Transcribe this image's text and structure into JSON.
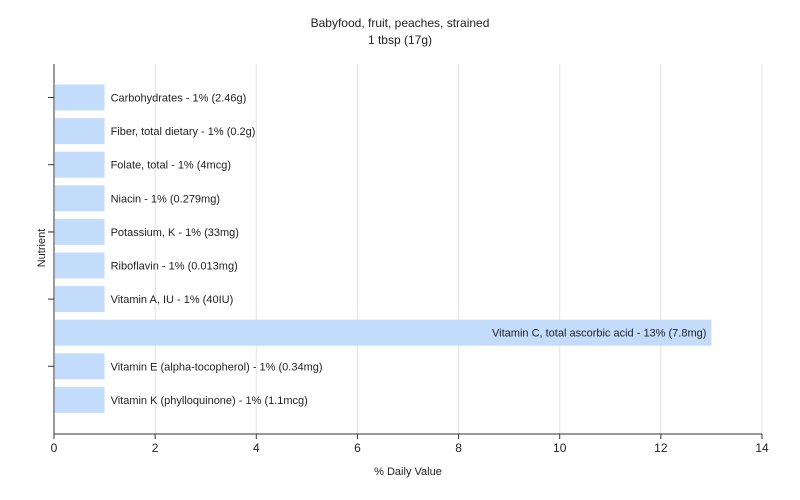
{
  "chart_data": {
    "type": "bar",
    "orientation": "horizontal",
    "title": "Babyfood, fruit, peaches, strained",
    "subtitle": "1 tbsp (17g)",
    "xlabel": "% Daily Value",
    "ylabel": "Nutrient",
    "xlim": [
      0,
      14
    ],
    "xticks": [
      0,
      2,
      4,
      6,
      8,
      10,
      12,
      14
    ],
    "grid": true,
    "bar_color": "#c4dcfc",
    "categories": [
      "Carbohydrates",
      "Fiber, total dietary",
      "Folate, total",
      "Niacin",
      "Potassium, K",
      "Riboflavin",
      "Vitamin A, IU",
      "Vitamin C, total ascorbic acid",
      "Vitamin E (alpha-tocopherol)",
      "Vitamin K (phylloquinone)"
    ],
    "values": [
      1,
      1,
      1,
      1,
      1,
      1,
      1,
      13,
      1,
      1
    ],
    "labels": [
      "Carbohydrates - 1% (2.46g)",
      "Fiber, total dietary - 1% (0.2g)",
      "Folate, total - 1% (4mcg)",
      "Niacin - 1% (0.279mg)",
      "Potassium, K - 1% (33mg)",
      "Riboflavin - 1% (0.013mg)",
      "Vitamin A, IU - 1% (40IU)",
      "Vitamin C, total ascorbic acid - 13% (7.8mg)",
      "Vitamin E (alpha-tocopherol) - 1% (0.34mg)",
      "Vitamin K (phylloquinone) - 1% (1.1mcg)"
    ]
  }
}
